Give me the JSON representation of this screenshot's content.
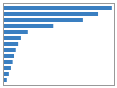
{
  "chart_data": {
    "type": "bar",
    "orientation": "horizontal",
    "categories": [
      null,
      null,
      null,
      null,
      null,
      null,
      null,
      null,
      null,
      null,
      null,
      null,
      null
    ],
    "values": [
      1580,
      1380,
      1160,
      730,
      360,
      260,
      220,
      185,
      160,
      140,
      115,
      85,
      55
    ],
    "color": "#3a7fc1",
    "xlim": [
      0,
      1611.6
    ],
    "xticks": [],
    "grid": false,
    "tick_labels": false
  }
}
